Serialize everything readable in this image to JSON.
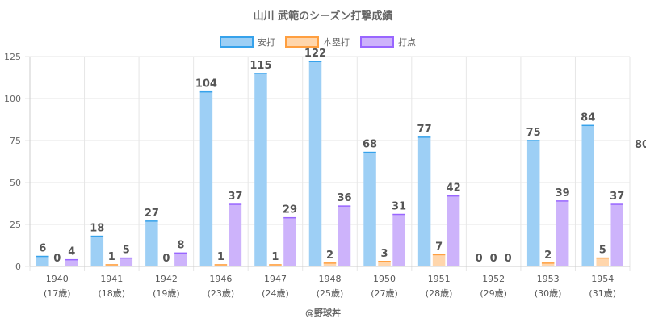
{
  "chart_data": {
    "type": "bar",
    "title": "山川 武範のシーズン打撃成績",
    "categories": [
      "1940",
      "1941",
      "1942",
      "1946",
      "1947",
      "1948",
      "1950",
      "1951",
      "1952",
      "1953",
      "1954"
    ],
    "ages": [
      "(17歳)",
      "(18歳)",
      "(19歳)",
      "(23歳)",
      "(24歳)",
      "(25歳)",
      "(27歳)",
      "(28歳)",
      "(29歳)",
      "(30歳)",
      "(31歳)"
    ],
    "series": [
      {
        "name": "安打",
        "values": [
          6,
          18,
          27,
          104,
          115,
          122,
          68,
          77,
          0,
          75,
          84
        ],
        "fill": "#9dcff5",
        "stroke": "#36a2eb"
      },
      {
        "name": "本塁打",
        "values": [
          0,
          1,
          0,
          1,
          1,
          2,
          3,
          7,
          0,
          2,
          5
        ],
        "fill": "#ffd6ac",
        "stroke": "#ff9f40"
      },
      {
        "name": "打点",
        "values": [
          4,
          5,
          8,
          37,
          29,
          36,
          31,
          42,
          0,
          39,
          37
        ],
        "fill": "#cdb3fb",
        "stroke": "#9966ff"
      }
    ],
    "ylim": [
      0,
      125
    ],
    "yticks": [
      0,
      25,
      50,
      75,
      100,
      125
    ],
    "grid": true,
    "legend": "top-center",
    "overflow_label": "80"
  },
  "credit": "@野球丼"
}
